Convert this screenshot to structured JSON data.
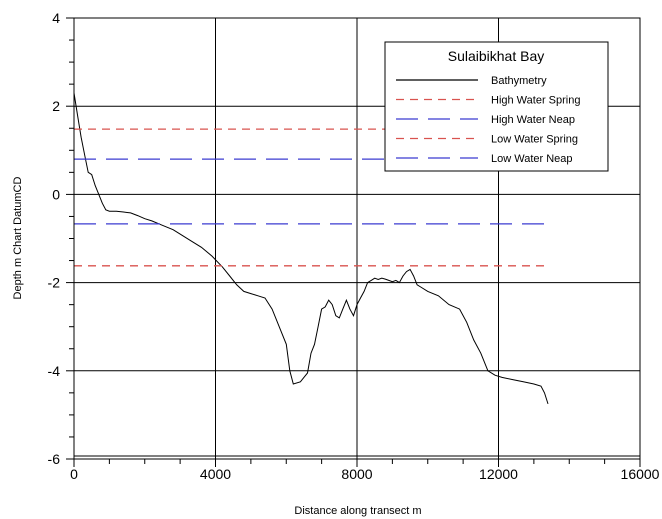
{
  "chart_data": {
    "type": "line",
    "legend_title": "Sulaibikhat Bay",
    "xlabel": "Distance along transect m",
    "ylabel": "Depth m Chart DatumCD",
    "xlim": [
      0,
      16000
    ],
    "ylim": [
      -6,
      4
    ],
    "x_ticks": [
      0,
      4000,
      8000,
      12000,
      16000
    ],
    "x_tick_labels": [
      "0",
      "4000",
      "8000",
      "12000",
      "16000"
    ],
    "y_ticks": [
      -6,
      -4,
      -2,
      0,
      2,
      4
    ],
    "y_tick_labels": [
      "-6",
      "-4",
      "-2",
      "0",
      "2",
      "4"
    ],
    "grid": true,
    "legend_position": "top-right",
    "series": [
      {
        "name": "Bathymetry",
        "style": "solid",
        "color": "#000000",
        "x": [
          0,
          100,
          200,
          300,
          400,
          500,
          600,
          700,
          800,
          900,
          1000,
          1200,
          1400,
          1600,
          1800,
          2000,
          2200,
          2500,
          2800,
          3000,
          3300,
          3600,
          3900,
          4200,
          4400,
          4600,
          4800,
          5000,
          5200,
          5400,
          5600,
          5800,
          6000,
          6100,
          6200,
          6400,
          6500,
          6600,
          6700,
          6800,
          6900,
          7000,
          7100,
          7200,
          7300,
          7400,
          7500,
          7600,
          7700,
          7800,
          7900,
          8000,
          8100,
          8200,
          8300,
          8400,
          8500,
          8600,
          8700,
          8800,
          8900,
          9000,
          9100,
          9200,
          9300,
          9400,
          9500,
          9600,
          9700,
          9800,
          10000,
          10300,
          10600,
          10900,
          11100,
          11300,
          11500,
          11700,
          11900,
          12100,
          12400,
          12700,
          13000,
          13200,
          13300,
          13400
        ],
        "y": [
          2.3,
          1.8,
          1.3,
          0.9,
          0.5,
          0.45,
          0.2,
          0.0,
          -0.2,
          -0.35,
          -0.38,
          -0.38,
          -0.4,
          -0.42,
          -0.48,
          -0.55,
          -0.6,
          -0.7,
          -0.8,
          -0.9,
          -1.05,
          -1.2,
          -1.4,
          -1.65,
          -1.85,
          -2.05,
          -2.2,
          -2.25,
          -2.3,
          -2.35,
          -2.6,
          -3.0,
          -3.4,
          -4.0,
          -4.3,
          -4.25,
          -4.15,
          -4.05,
          -3.6,
          -3.4,
          -3.0,
          -2.6,
          -2.55,
          -2.4,
          -2.5,
          -2.75,
          -2.8,
          -2.6,
          -2.4,
          -2.6,
          -2.75,
          -2.5,
          -2.35,
          -2.2,
          -2.0,
          -1.95,
          -1.9,
          -1.93,
          -1.9,
          -1.92,
          -1.95,
          -1.98,
          -1.95,
          -2.0,
          -1.85,
          -1.75,
          -1.7,
          -1.85,
          -2.05,
          -2.1,
          -2.2,
          -2.3,
          -2.5,
          -2.6,
          -2.9,
          -3.3,
          -3.6,
          -4.0,
          -4.1,
          -4.15,
          -4.2,
          -4.25,
          -4.3,
          -4.35,
          -4.5,
          -4.75
        ]
      },
      {
        "name": "High Water Spring",
        "style": "dashed",
        "color": "#d9534f",
        "x": [
          0,
          13400
        ],
        "y": [
          1.48,
          1.48
        ]
      },
      {
        "name": "High Water Neap",
        "style": "longdash",
        "color": "#3b3bd1",
        "x": [
          0,
          13400
        ],
        "y": [
          0.8,
          0.8
        ]
      },
      {
        "name": "Low Water Spring",
        "style": "dashed",
        "color": "#d9534f",
        "x": [
          0,
          13400
        ],
        "y": [
          -1.62,
          -1.62
        ]
      },
      {
        "name": "Low Water Neap",
        "style": "longdash",
        "color": "#3b3bd1",
        "x": [
          0,
          13400
        ],
        "y": [
          -0.67,
          -0.67
        ]
      }
    ]
  }
}
